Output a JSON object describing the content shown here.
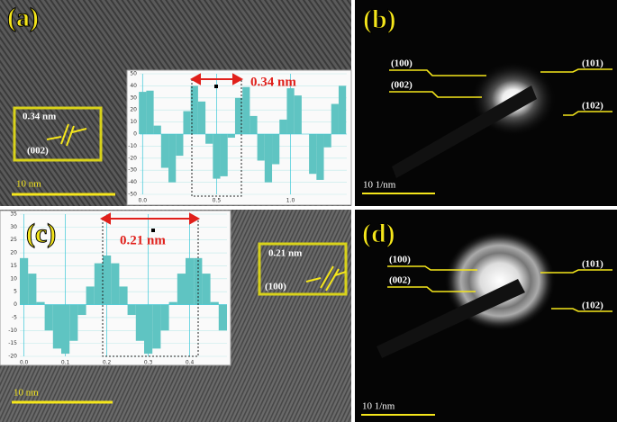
{
  "panels": [
    {
      "label": "(a)",
      "scale_bar": "10 nm",
      "inset": {
        "spacing": "0.34 nm",
        "plane": "(002)"
      },
      "profile": {
        "type": "bar",
        "annotation": "0.34 nm",
        "x": [
          0,
          0.05,
          0.1,
          0.15,
          0.2,
          0.25,
          0.3,
          0.35,
          0.4,
          0.45,
          0.5,
          0.55,
          0.6,
          0.65,
          0.7,
          0.75,
          0.8,
          0.85,
          0.9,
          0.95,
          1.0,
          1.05,
          1.1,
          1.15,
          1.2,
          1.25,
          1.3,
          1.35
        ],
        "values": [
          35,
          36,
          7,
          -28,
          -40,
          -18,
          19,
          40,
          27,
          -8,
          -37,
          -35,
          -3,
          30,
          39,
          15,
          -22,
          -40,
          -25,
          12,
          38,
          32,
          0,
          -33,
          -38,
          -11,
          25,
          40
        ],
        "xlim": [
          -0.02,
          1.38
        ],
        "ylim": [
          -50,
          50
        ],
        "xticks": [
          {
            "value": 0,
            "label": "0.0"
          },
          {
            "value": 0.5,
            "label": "0.5"
          },
          {
            "value": 1,
            "label": "1.0"
          }
        ],
        "yticks": [
          -50,
          -40,
          -30,
          -20,
          -10,
          0,
          10,
          20,
          30,
          40,
          50
        ]
      }
    },
    {
      "label": "(b)",
      "scale_bar": "10 1/nm",
      "rings": [
        "(100)",
        "(002)",
        "(101)",
        "(102)"
      ]
    },
    {
      "label": "(c)",
      "scale_bar": "10 nm",
      "inset": {
        "spacing": "0.21 nm",
        "plane": "(100)"
      },
      "profile": {
        "type": "bar",
        "annotation": "0.21 nm",
        "x": [
          0,
          0.02,
          0.04,
          0.06,
          0.08,
          0.1,
          0.12,
          0.14,
          0.16,
          0.18,
          0.2,
          0.22,
          0.24,
          0.26,
          0.28,
          0.3,
          0.32,
          0.34,
          0.36,
          0.38,
          0.4,
          0.42,
          0.44,
          0.46,
          0.48
        ],
        "values": [
          18,
          12,
          1,
          -10,
          -17,
          -19,
          -14,
          -4,
          7,
          16,
          19,
          16,
          7,
          -4,
          -14,
          -19,
          -17,
          -10,
          1,
          12,
          18,
          18,
          12,
          1,
          -10
        ],
        "xlim": [
          -0.01,
          0.49
        ],
        "ylim": [
          -20,
          35
        ],
        "xticks": [
          {
            "value": 0,
            "label": "0.0"
          },
          {
            "value": 0.1,
            "label": "0.1"
          },
          {
            "value": 0.2,
            "label": "0.2"
          },
          {
            "value": 0.3,
            "label": "0.3"
          },
          {
            "value": 0.4,
            "label": "0.4"
          }
        ],
        "yticks": [
          -20,
          -15,
          -10,
          -5,
          0,
          5,
          10,
          15,
          20,
          25,
          30,
          35
        ]
      }
    },
    {
      "label": "(d)",
      "scale_bar": "10 1/nm",
      "rings": [
        "(100)",
        "(002)",
        "(101)",
        "(102)"
      ]
    }
  ]
}
